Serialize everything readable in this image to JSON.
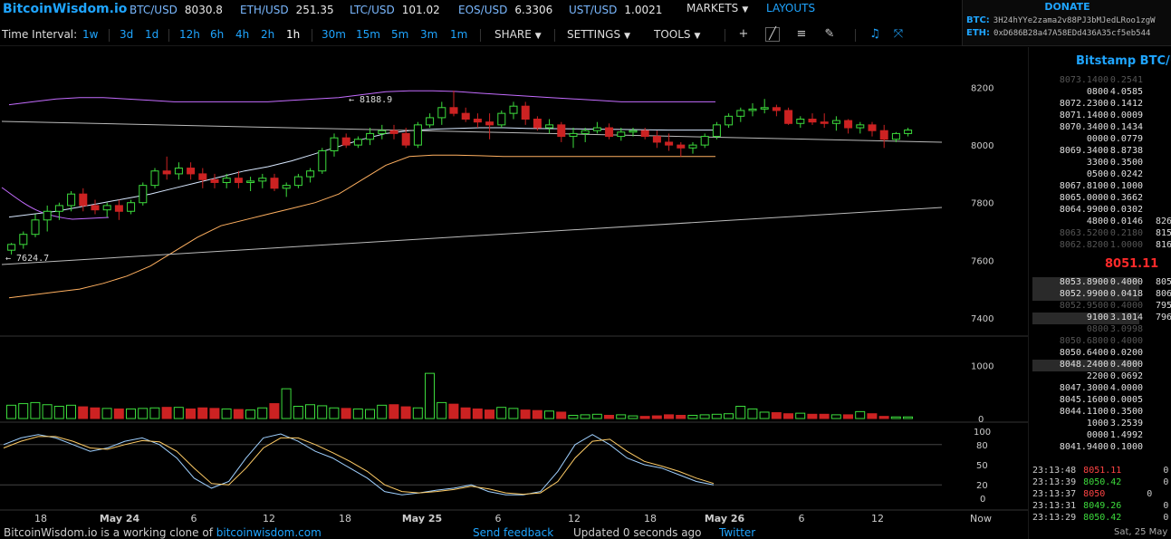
{
  "app": {
    "logo": "BitcoinWisdom.io"
  },
  "tickers": [
    {
      "symbol": "BTC/USD",
      "price": "8030.8"
    },
    {
      "symbol": "ETH/USD",
      "price": "251.35"
    },
    {
      "symbol": "LTC/USD",
      "price": "101.02"
    },
    {
      "symbol": "EOS/USD",
      "price": "6.3306"
    },
    {
      "symbol": "UST/USD",
      "price": "1.0021"
    }
  ],
  "menu": {
    "markets": "MARKETS",
    "layouts": "LAYOUTS"
  },
  "donate": {
    "title": "DONATE",
    "btc_label": "BTC:",
    "btc_address": "3H24hYYe2zama2v88PJ3bMJedLRoo1zgW",
    "eth_label": "ETH:",
    "eth_address": "0xD686B28a47A58EDd436A35cf5eb544"
  },
  "interval": {
    "label": "Time Interval:",
    "options": [
      "1w",
      "3d",
      "1d",
      "12h",
      "6h",
      "4h",
      "2h",
      "1h",
      "30m",
      "15m",
      "5m",
      "3m",
      "1m"
    ],
    "active": "1h"
  },
  "toolbar": {
    "share": "SHARE",
    "settings": "SETTINGS",
    "tools": "TOOLS"
  },
  "icons": [
    "plus-icon",
    "line-draw-icon",
    "fib-lines-icon",
    "pen-icon",
    "alert-bell-icon",
    "fullscreen-icon"
  ],
  "colors": {
    "accent": "#1fa5ff",
    "up": "#3ddc3d",
    "down": "#cc2222",
    "last_price": "#ff2a2a"
  },
  "chart_data": {
    "type": "candlestick",
    "timeframe": "1h",
    "price_axis": {
      "ticks": [
        8200,
        8000,
        7800,
        7600,
        7400
      ],
      "ylim": [
        7340,
        8340
      ]
    },
    "volume_axis": {
      "ticks": [
        1000,
        0
      ],
      "ylim": [
        0,
        1500
      ]
    },
    "oscillator_axis": {
      "ticks": [
        100,
        80,
        50,
        20,
        0
      ]
    },
    "x_ticks": [
      "18",
      "May 24",
      "6",
      "12",
      "18",
      "May 25",
      "6",
      "12",
      "18",
      "May 26",
      "6",
      "12",
      "Now"
    ],
    "annotations": {
      "high": "← 8188.9",
      "low": "← 7624.7"
    },
    "candles": [
      [
        7635,
        7660,
        7620,
        7655
      ],
      [
        7655,
        7700,
        7640,
        7690
      ],
      [
        7690,
        7760,
        7680,
        7740
      ],
      [
        7740,
        7790,
        7700,
        7770
      ],
      [
        7770,
        7800,
        7740,
        7790
      ],
      [
        7790,
        7840,
        7770,
        7830
      ],
      [
        7830,
        7850,
        7770,
        7790
      ],
      [
        7790,
        7810,
        7760,
        7775
      ],
      [
        7775,
        7800,
        7750,
        7790
      ],
      [
        7790,
        7810,
        7740,
        7770
      ],
      [
        7770,
        7810,
        7760,
        7800
      ],
      [
        7800,
        7870,
        7790,
        7860
      ],
      [
        7860,
        7920,
        7850,
        7910
      ],
      [
        7910,
        7960,
        7880,
        7900
      ],
      [
        7900,
        7940,
        7880,
        7920
      ],
      [
        7920,
        7940,
        7880,
        7900
      ],
      [
        7900,
        7920,
        7850,
        7880
      ],
      [
        7880,
        7900,
        7850,
        7870
      ],
      [
        7870,
        7900,
        7850,
        7885
      ],
      [
        7885,
        7910,
        7850,
        7870
      ],
      [
        7870,
        7890,
        7840,
        7875
      ],
      [
        7875,
        7900,
        7850,
        7885
      ],
      [
        7885,
        7900,
        7840,
        7850
      ],
      [
        7850,
        7870,
        7820,
        7860
      ],
      [
        7860,
        7900,
        7850,
        7890
      ],
      [
        7890,
        7920,
        7870,
        7910
      ],
      [
        7910,
        7990,
        7900,
        7980
      ],
      [
        7980,
        8040,
        7960,
        8025
      ],
      [
        8025,
        8040,
        7990,
        8000
      ],
      [
        8000,
        8030,
        7990,
        8020
      ],
      [
        8020,
        8060,
        8000,
        8040
      ],
      [
        8040,
        8070,
        8020,
        8050
      ],
      [
        8050,
        8070,
        8020,
        8040
      ],
      [
        8040,
        8060,
        7990,
        8000
      ],
      [
        8000,
        8080,
        7990,
        8070
      ],
      [
        8070,
        8110,
        8060,
        8095
      ],
      [
        8095,
        8150,
        8070,
        8130
      ],
      [
        8130,
        8189,
        8100,
        8110
      ],
      [
        8110,
        8130,
        8080,
        8090
      ],
      [
        8090,
        8110,
        8060,
        8080
      ],
      [
        8080,
        8110,
        8020,
        8070
      ],
      [
        8070,
        8120,
        8060,
        8110
      ],
      [
        8110,
        8150,
        8090,
        8135
      ],
      [
        8135,
        8150,
        8070,
        8090
      ],
      [
        8090,
        8100,
        8050,
        8060
      ],
      [
        8060,
        8090,
        8040,
        8070
      ],
      [
        8070,
        8080,
        8010,
        8030
      ],
      [
        8030,
        8060,
        7990,
        8040
      ],
      [
        8040,
        8060,
        8010,
        8050
      ],
      [
        8050,
        8080,
        8040,
        8060
      ],
      [
        8060,
        8075,
        8020,
        8030
      ],
      [
        8030,
        8060,
        8015,
        8045
      ],
      [
        8045,
        8060,
        8030,
        8050
      ],
      [
        8050,
        8060,
        8020,
        8030
      ],
      [
        8030,
        8050,
        7990,
        8010
      ],
      [
        8010,
        8040,
        7980,
        8000
      ],
      [
        8000,
        8010,
        7960,
        7990
      ],
      [
        7990,
        8010,
        7970,
        8000
      ],
      [
        8000,
        8040,
        7990,
        8030
      ],
      [
        8030,
        8080,
        8020,
        8070
      ],
      [
        8070,
        8110,
        8060,
        8100
      ],
      [
        8100,
        8130,
        8080,
        8120
      ],
      [
        8120,
        8145,
        8100,
        8125
      ],
      [
        8125,
        8160,
        8110,
        8130
      ],
      [
        8130,
        8140,
        8100,
        8120
      ],
      [
        8120,
        8130,
        8070,
        8075
      ],
      [
        8075,
        8100,
        8060,
        8090
      ],
      [
        8090,
        8110,
        8070,
        8080
      ],
      [
        8080,
        8110,
        8060,
        8075
      ],
      [
        8075,
        8100,
        8050,
        8085
      ],
      [
        8085,
        8090,
        8040,
        8060
      ],
      [
        8060,
        8080,
        8040,
        8070
      ],
      [
        8070,
        8080,
        8030,
        8050
      ],
      [
        8050,
        8070,
        7990,
        8020
      ],
      [
        8020,
        8045,
        8010,
        8040
      ],
      [
        8040,
        8060,
        8030,
        8052
      ]
    ],
    "volumes": [
      250,
      280,
      300,
      260,
      230,
      250,
      220,
      200,
      190,
      180,
      180,
      190,
      200,
      210,
      210,
      180,
      200,
      190,
      180,
      170,
      160,
      200,
      280,
      560,
      230,
      260,
      240,
      200,
      190,
      180,
      170,
      250,
      260,
      220,
      200,
      850,
      300,
      270,
      200,
      180,
      160,
      210,
      190,
      160,
      150,
      140,
      120,
      60,
      70,
      80,
      60,
      70,
      50,
      40,
      50,
      70,
      60,
      60,
      70,
      80,
      90,
      230,
      180,
      120,
      110,
      90,
      100,
      80,
      80,
      70,
      70,
      130,
      90,
      40,
      30,
      30
    ],
    "bb_upper": [
      8140,
      8150,
      8160,
      8165,
      8165,
      8160,
      8155,
      8150,
      8150,
      8150,
      8150,
      8150,
      8155,
      8160,
      8165,
      8175,
      8185,
      8188,
      8188,
      8186,
      8180,
      8175,
      8170,
      8165,
      8160,
      8155,
      8150,
      8150,
      8150,
      8150,
      8150
    ],
    "bb_middle": [
      7750,
      7760,
      7770,
      7785,
      7800,
      7815,
      7830,
      7850,
      7870,
      7890,
      7910,
      7925,
      7945,
      7970,
      7995,
      8020,
      8040,
      8050,
      8055,
      8058,
      8060,
      8060,
      8058,
      8057,
      8056,
      8055,
      8054,
      8053,
      8052,
      8052,
      8052
    ],
    "bb_lower": [
      7470,
      7480,
      7490,
      7500,
      7520,
      7545,
      7580,
      7630,
      7680,
      7720,
      7740,
      7760,
      7780,
      7800,
      7830,
      7880,
      7930,
      7960,
      7965,
      7965,
      7963,
      7960,
      7960,
      7960,
      7960,
      7960,
      7960,
      7960,
      7960,
      7960,
      7960
    ]
  },
  "orderbook": {
    "title": "Bitstamp BTC/U",
    "asks": [
      {
        "price": "8073.1400",
        "amount": "0.2541",
        "dim": true
      },
      {
        "price": "0800",
        "amount": "4.0585"
      },
      {
        "price": "8072.2300",
        "amount": "0.1412"
      },
      {
        "price": "8071.1400",
        "amount": "0.0009"
      },
      {
        "price": "8070.3400",
        "amount": "0.1434"
      },
      {
        "price": "0000",
        "amount": "0.0779"
      },
      {
        "price": "8069.3400",
        "amount": "8.8738"
      },
      {
        "price": "3300",
        "amount": "0.3500"
      },
      {
        "price": "0500",
        "amount": "0.0242"
      },
      {
        "price": "8067.8100",
        "amount": "0.1000"
      },
      {
        "price": "8065.0000",
        "amount": "0.3662"
      },
      {
        "price": "8064.9900",
        "amount": "0.0302"
      },
      {
        "price": "4800",
        "amount": "0.0146",
        "extra": "826"
      },
      {
        "price": "8063.5200",
        "amount": "0.2180",
        "dim": true,
        "extra": "815"
      },
      {
        "price": "8062.8200",
        "amount": "1.0000",
        "dim": true,
        "extra": "816"
      }
    ],
    "last_price": "8051.11",
    "bids": [
      {
        "price": "8053.8900",
        "amount": "0.4000",
        "hl": true,
        "extra": "805"
      },
      {
        "price": "8052.9900",
        "amount": "0.0418",
        "hl": true,
        "extra": "806"
      },
      {
        "price": "8052.9500",
        "amount": "0.4000",
        "dim": true,
        "extra": "795"
      },
      {
        "price": "9100",
        "amount": "3.1014",
        "hl": true,
        "extra": "796"
      },
      {
        "price": "0800",
        "amount": "3.0998",
        "dim": true
      },
      {
        "price": "8050.6800",
        "amount": "0.4000",
        "dim": true
      },
      {
        "price": "8050.6400",
        "amount": "0.0200"
      },
      {
        "price": "8048.2400",
        "amount": "0.4000",
        "hl": true
      },
      {
        "price": "2200",
        "amount": "0.0692"
      },
      {
        "price": "8047.3000",
        "amount": "4.0000"
      },
      {
        "price": "8045.1600",
        "amount": "0.0005"
      },
      {
        "price": "8044.1100",
        "amount": "0.3500"
      },
      {
        "price": "1000",
        "amount": "3.2539"
      },
      {
        "price": "0000",
        "amount": "1.4992"
      },
      {
        "price": "8041.9400",
        "amount": "0.1000"
      }
    ],
    "trades": [
      {
        "time": "23:13:48",
        "price": "8051.11",
        "dir": "down",
        "vol": "0"
      },
      {
        "time": "23:13:39",
        "price": "8050.42",
        "dir": "up",
        "vol": "0"
      },
      {
        "time": "23:13:37",
        "price": "8050",
        "dir": "down",
        "vol": "0"
      },
      {
        "time": "23:13:31",
        "price": "8049.26",
        "dir": "up",
        "vol": "0"
      },
      {
        "time": "23:13:29",
        "price": "8050.42",
        "dir": "up",
        "vol": "0"
      }
    ]
  },
  "footer": {
    "clone_text": "BitcoinWisdom.io is a working clone of",
    "clone_link": "bitcoinwisdom.com",
    "feedback": "Send feedback",
    "updated": "Updated 0 seconds ago",
    "twitter": "Twitter",
    "clock": "Sat, 25 May"
  }
}
